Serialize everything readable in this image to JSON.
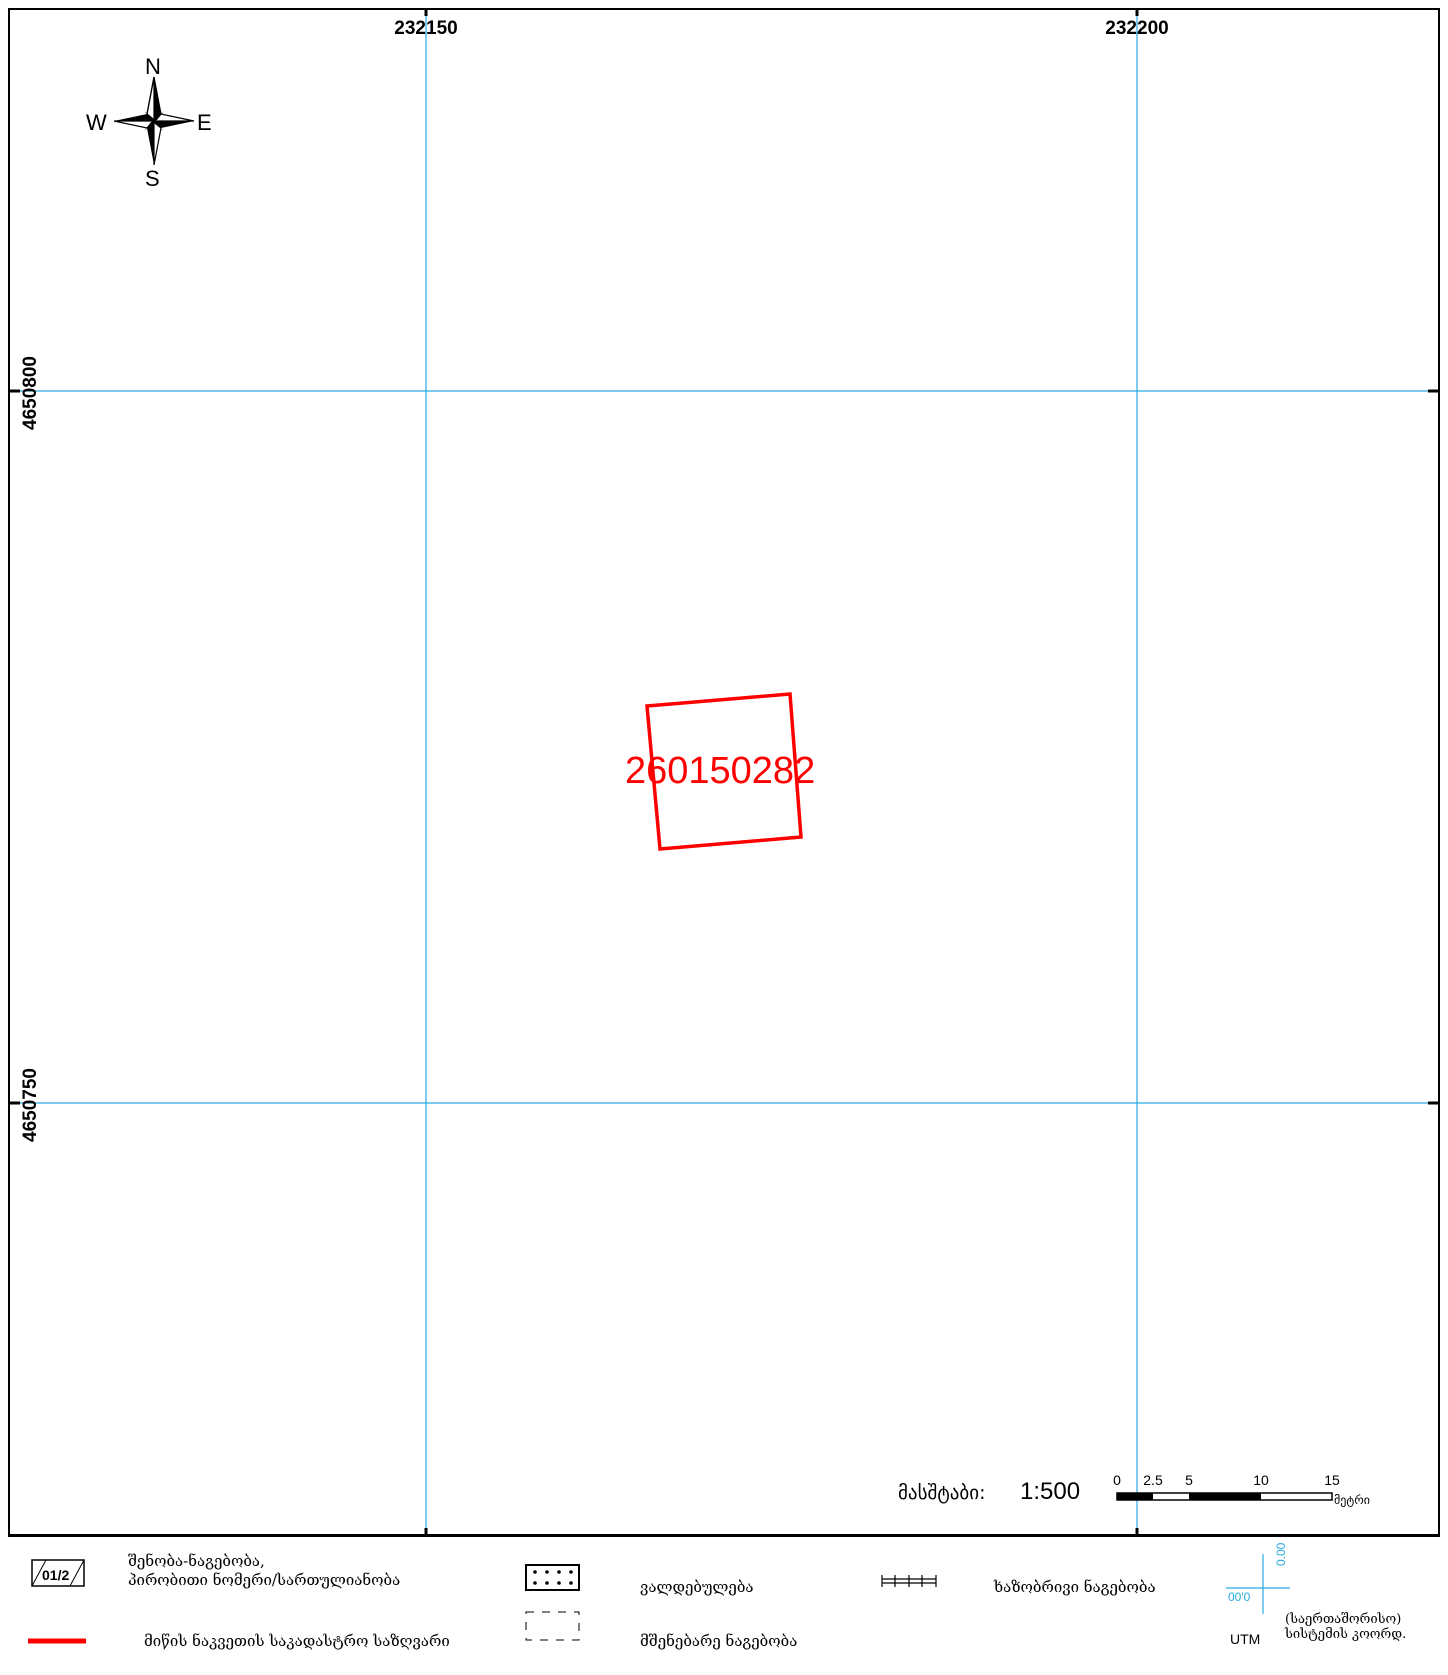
{
  "map": {
    "grid_x": [
      "232150",
      "232200"
    ],
    "grid_y": [
      "4650800",
      "4650750"
    ],
    "parcel_id": "260150282",
    "compass": {
      "n": "N",
      "s": "S",
      "e": "E",
      "w": "W"
    },
    "grid_color": "#29aae2",
    "parcel_color": "#ff0000"
  },
  "scale": {
    "label": "მასშტაბი:",
    "value": "1:500",
    "ticks": [
      "0",
      "2.5",
      "5",
      "10",
      "15"
    ],
    "unit": "მეტრი"
  },
  "legend": {
    "building_symbol": "01/2",
    "building_text_1": "შენობა-ნაგებობა,",
    "building_text_2": "პირობითი ნომერი/სართულიანობა",
    "boundary_text": "მიწის ნაკვეთის საკადასტრო საზღვარი",
    "obligation_text": "ვალდებულება",
    "construction_text": "მშენებარე ნაგებობა",
    "linear_text": "ხაზობრივი ნაგებობა",
    "utm_y": "0.00",
    "utm_x": "00'0",
    "utm_label": "UTM",
    "utm_text_1": "(საერთაშორისო)",
    "utm_text_2": "სისტემის კოორდ."
  }
}
